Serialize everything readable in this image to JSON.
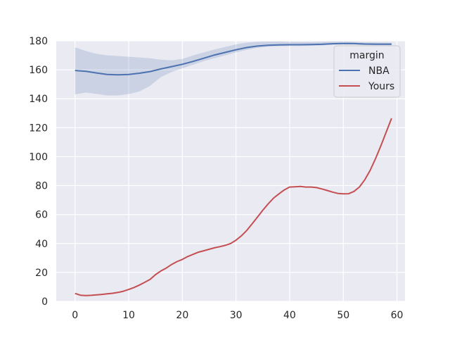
{
  "chart_data": {
    "type": "line",
    "title": "",
    "xlabel": "",
    "ylabel": "",
    "xlim": [
      -3.5,
      61.5
    ],
    "ylim": [
      0,
      180
    ],
    "xticks": [
      0,
      10,
      20,
      30,
      40,
      50,
      60
    ],
    "yticks": [
      0,
      20,
      40,
      60,
      80,
      100,
      120,
      140,
      160,
      180
    ],
    "grid": true,
    "legend": {
      "title": "margin",
      "placement": "top-right"
    },
    "series": [
      {
        "name": "NBA",
        "color": "#4c72b0",
        "x": [
          0,
          2,
          4,
          6,
          8,
          10,
          12,
          14,
          16,
          18,
          20,
          22,
          24,
          26,
          28,
          30,
          32,
          34,
          36,
          38,
          40,
          42,
          44,
          46,
          48,
          50,
          52,
          54,
          56,
          58,
          59
        ],
        "values": [
          159.5,
          159.0,
          157.8,
          156.8,
          156.5,
          156.8,
          157.6,
          158.8,
          160.6,
          162.2,
          163.8,
          165.8,
          168.0,
          170.2,
          172.0,
          173.8,
          175.4,
          176.4,
          177.0,
          177.2,
          177.3,
          177.3,
          177.4,
          177.6,
          178.0,
          178.2,
          178.1,
          177.8,
          177.7,
          177.7,
          177.7
        ],
        "band_lower": [
          143.0,
          144.3,
          143.3,
          142.3,
          142.3,
          143.2,
          145.0,
          149.0,
          155.0,
          158.5,
          161.0,
          163.5,
          166.0,
          168.0,
          170.0,
          172.0,
          173.8,
          175.2,
          176.0,
          176.3,
          176.4,
          176.5,
          176.6,
          176.8,
          177.3,
          177.5,
          177.4,
          177.1,
          177.0,
          177.0,
          177.0
        ],
        "band_upper": [
          175.5,
          173.0,
          171.0,
          170.0,
          169.5,
          169.0,
          168.5,
          168.0,
          167.0,
          166.5,
          167.5,
          170.0,
          172.0,
          174.0,
          175.8,
          177.5,
          178.8,
          179.3,
          179.5,
          179.5,
          179.3,
          179.2,
          179.2,
          179.3,
          179.5,
          179.6,
          179.4,
          179.0,
          178.9,
          178.8,
          178.8
        ]
      },
      {
        "name": "Yours",
        "color": "#c44e52",
        "x": [
          0,
          1,
          2,
          3,
          4,
          5,
          6,
          7,
          8,
          9,
          10,
          11,
          12,
          13,
          14,
          15,
          16,
          17,
          18,
          19,
          20,
          21,
          22,
          23,
          24,
          25,
          26,
          27,
          28,
          29,
          30,
          31,
          32,
          33,
          34,
          35,
          36,
          37,
          38,
          39,
          40,
          41,
          42,
          43,
          44,
          45,
          46,
          47,
          48,
          49,
          50,
          51,
          52,
          53,
          54,
          55,
          56,
          57,
          58,
          59
        ],
        "values": [
          5.5,
          4.3,
          4.0,
          4.2,
          4.5,
          4.8,
          5.2,
          5.6,
          6.2,
          7.0,
          8.2,
          9.6,
          11.3,
          13.2,
          15.2,
          18.5,
          21.0,
          23.0,
          25.5,
          27.5,
          29.0,
          31.0,
          32.5,
          34.0,
          35.0,
          36.0,
          37.0,
          37.8,
          38.7,
          40.0,
          42.3,
          45.3,
          49.0,
          53.5,
          58.3,
          63.0,
          67.4,
          71.3,
          74.3,
          77.0,
          79.0,
          79.2,
          79.4,
          79.0,
          79.0,
          78.6,
          77.7,
          76.6,
          75.5,
          74.6,
          74.3,
          74.4,
          76.0,
          79.0,
          84.0,
          90.5,
          98.5,
          107.5,
          117.0,
          126.5
        ]
      }
    ]
  }
}
